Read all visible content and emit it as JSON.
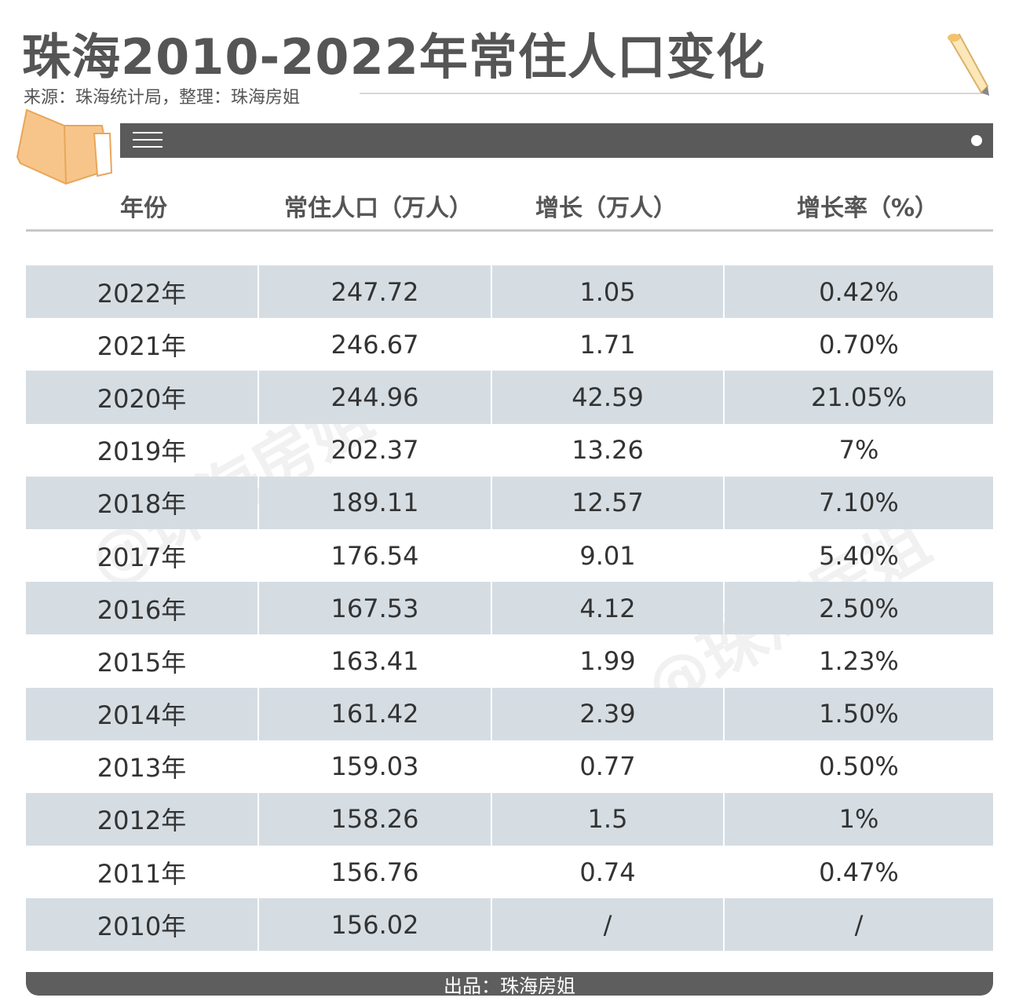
{
  "header": {
    "title": "珠海2010-2022年常住人口变化",
    "source": "来源：珠海统计局，整理：珠海房姐"
  },
  "watermark": "@珠海房姐",
  "footer": {
    "label": "出品：珠海房姐"
  },
  "colors": {
    "bar": "#5a5a5a",
    "stripe": "#d5dde3",
    "title": "#555555"
  },
  "icons": {
    "menu": "menu-icon",
    "book": "book-icon",
    "pencil": "pencil-icon"
  },
  "chart_data": {
    "type": "table",
    "columns": [
      "年份",
      "常住人口（万人）",
      "增长（万人）",
      "增长率（%）"
    ],
    "rows": [
      [
        "2022年",
        "247.72",
        "1.05",
        "0.42%"
      ],
      [
        "2021年",
        "246.67",
        "1.71",
        "0.70%"
      ],
      [
        "2020年",
        "244.96",
        "42.59",
        "21.05%"
      ],
      [
        "2019年",
        "202.37",
        "13.26",
        "7%"
      ],
      [
        "2018年",
        "189.11",
        "12.57",
        "7.10%"
      ],
      [
        "2017年",
        "176.54",
        "9.01",
        "5.40%"
      ],
      [
        "2016年",
        "167.53",
        "4.12",
        "2.50%"
      ],
      [
        "2015年",
        "163.41",
        "1.99",
        "1.23%"
      ],
      [
        "2014年",
        "161.42",
        "2.39",
        "1.50%"
      ],
      [
        "2013年",
        "159.03",
        "0.77",
        "0.50%"
      ],
      [
        "2012年",
        "158.26",
        "1.5",
        "1%"
      ],
      [
        "2011年",
        "156.76",
        "0.74",
        "0.47%"
      ],
      [
        "2010年",
        "156.02",
        "/",
        "/"
      ]
    ]
  }
}
